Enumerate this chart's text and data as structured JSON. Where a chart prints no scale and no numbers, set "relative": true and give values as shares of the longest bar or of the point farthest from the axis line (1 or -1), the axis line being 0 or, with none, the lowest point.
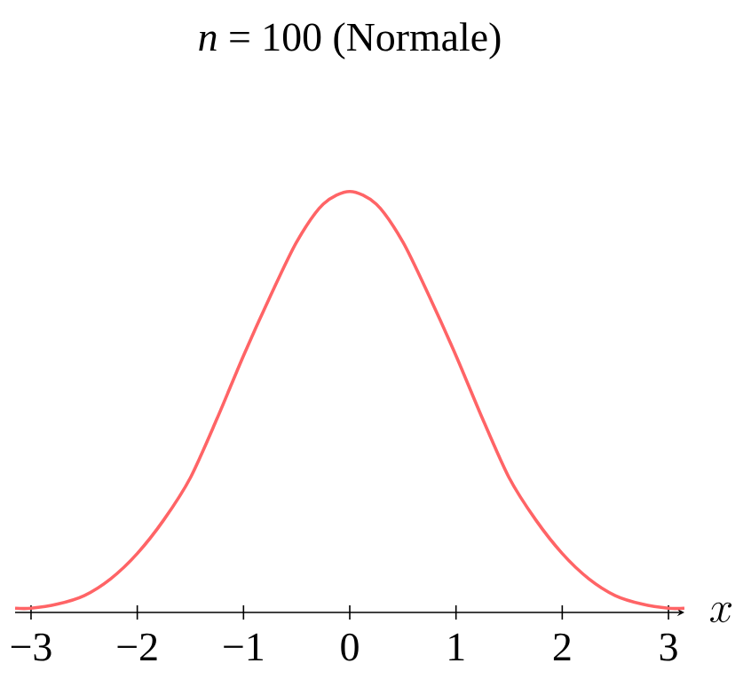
{
  "chart_data": {
    "type": "line",
    "title": "*n* = 100 (Normale)",
    "xlabel": "x",
    "relative": true,
    "x": [
      -3.15,
      -3,
      -2.75,
      -2.5,
      -2.25,
      -2,
      -1.75,
      -1.5,
      -1.25,
      -1,
      -0.75,
      -0.5,
      -0.25,
      0,
      0.25,
      0.5,
      0.75,
      1,
      1.25,
      1.5,
      1.75,
      2,
      2.25,
      2.5,
      2.75,
      3,
      3.15
    ],
    "series": [
      {
        "color": "#ff6466",
        "values": [
          0.01,
          0.01,
          0.02,
          0.04,
          0.08,
          0.14,
          0.22,
          0.32,
          0.46,
          0.61,
          0.75,
          0.88,
          0.97,
          1,
          0.97,
          0.88,
          0.75,
          0.61,
          0.46,
          0.32,
          0.22,
          0.14,
          0.08,
          0.04,
          0.02,
          0.01,
          0.01
        ]
      }
    ],
    "xlim": [
      -3.15,
      3.15
    ],
    "xticks": [
      {
        "value": -3,
        "label": "−3"
      },
      {
        "value": -2,
        "label": "−2"
      },
      {
        "value": -1,
        "label": "−1"
      },
      0,
      1,
      2,
      3
    ],
    "marker": "none",
    "line_style": "solid"
  }
}
